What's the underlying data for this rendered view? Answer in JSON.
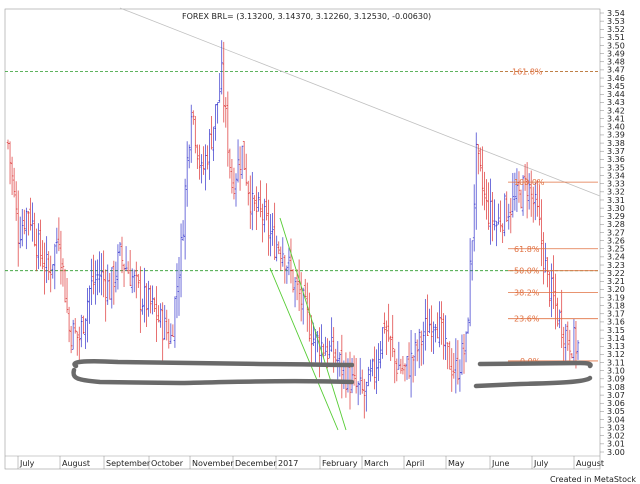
{
  "title": "FOREX BRL= (3.13200, 3.14370, 3.12260, 3.12530, -0.00630)",
  "credit": "Created in MetaStock",
  "colors": {
    "up": "#3333cc",
    "down": "#dd3333",
    "fib_line": "#e07040",
    "fib_text": "#e07040",
    "ref_green": "#2a9a2a",
    "trend": "#c0c0c0",
    "channel": "#55cc33",
    "support": "#6a6a6a"
  },
  "chart_data": {
    "type": "candlestick",
    "title": "FOREX BRL= (3.13200, 3.14370, 3.12260, 3.12530, -0.00630)",
    "ohlc_last": {
      "open": 3.132,
      "high": 3.1437,
      "low": 3.1226,
      "close": 3.1253,
      "change": -0.0063
    },
    "ylim": [
      3.0,
      3.54
    ],
    "yticks": [
      "3.00",
      "3.01",
      "3.02",
      "3.03",
      "3.04",
      "3.05",
      "3.06",
      "3.07",
      "3.08",
      "3.09",
      "3.10",
      "3.11",
      "3.12",
      "3.13",
      "3.14",
      "3.15",
      "3.16",
      "3.17",
      "3.18",
      "3.19",
      "3.20",
      "3.21",
      "3.22",
      "3.23",
      "3.24",
      "3.25",
      "3.26",
      "3.27",
      "3.28",
      "3.29",
      "3.30",
      "3.31",
      "3.32",
      "3.33",
      "3.34",
      "3.35",
      "3.36",
      "3.37",
      "3.38",
      "3.39",
      "3.40",
      "3.41",
      "3.42",
      "3.43",
      "3.44",
      "3.45",
      "3.46",
      "3.47",
      "3.48",
      "3.49",
      "3.50",
      "3.51",
      "3.52",
      "3.53",
      "3.54"
    ],
    "xticks": [
      "July",
      "August",
      "September",
      "October",
      "November",
      "December",
      "2017",
      "February",
      "March",
      "April",
      "May",
      "June",
      "July",
      "August"
    ],
    "fib_levels": [
      {
        "label": "161.8%",
        "value": 3.468
      },
      {
        "label": "100.0%",
        "value": 3.332
      },
      {
        "label": "61.8%",
        "value": 3.25
      },
      {
        "label": "50.0%",
        "value": 3.223
      },
      {
        "label": "38.2%",
        "value": 3.196
      },
      {
        "label": "23.6%",
        "value": 3.164
      },
      {
        "label": "0.0%",
        "value": 3.112
      }
    ],
    "weekly_closes": [
      3.38,
      3.27,
      3.3,
      3.25,
      3.22,
      3.27,
      3.15,
      3.14,
      3.2,
      3.22,
      3.2,
      3.24,
      3.22,
      3.19,
      3.18,
      3.16,
      3.14,
      3.25,
      3.43,
      3.34,
      3.39,
      3.46,
      3.33,
      3.37,
      3.3,
      3.29,
      3.26,
      3.25,
      3.21,
      3.18,
      3.14,
      3.13,
      3.12,
      3.1,
      3.08,
      3.07,
      3.1,
      3.16,
      3.11,
      3.1,
      3.12,
      3.15,
      3.17,
      3.12,
      3.1,
      3.13,
      3.36,
      3.3,
      3.28,
      3.3,
      3.31,
      3.33,
      3.29,
      3.21,
      3.17,
      3.14,
      3.13
    ],
    "grid": false
  }
}
